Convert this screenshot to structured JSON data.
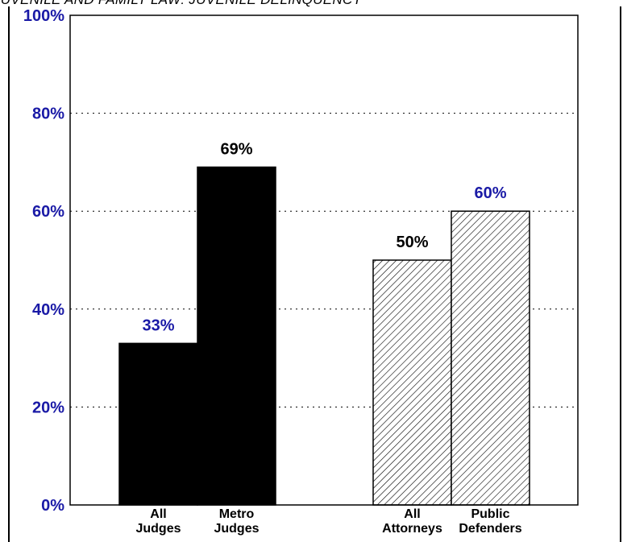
{
  "chart_data": {
    "type": "bar",
    "title": "JUVENILE AND FAMILY LAW: JUVENILE DELINQUENCY",
    "categories": [
      "All Judges",
      "Metro Judges",
      "All Attorneys",
      "Public Defenders"
    ],
    "category_lines": [
      [
        "All",
        "Judges"
      ],
      [
        "Metro",
        "Judges"
      ],
      [
        "All",
        "Attorneys"
      ],
      [
        "Public",
        "Defenders"
      ]
    ],
    "values": [
      33,
      69,
      50,
      60
    ],
    "value_labels": [
      "33%",
      "69%",
      "50%",
      "60%"
    ],
    "bar_styles": [
      "solid-black",
      "solid-black",
      "hatched",
      "hatched"
    ],
    "value_label_colors": [
      "#1a1aa6",
      "#000000",
      "#000000",
      "#1a1aa6"
    ],
    "ylim": [
      0,
      100
    ],
    "yticks": [
      0,
      20,
      40,
      60,
      80,
      100
    ],
    "ytick_labels": [
      "0%",
      "20%",
      "40%",
      "60%",
      "80%",
      "100%"
    ],
    "ytick_color": "#1a1aa6",
    "grid": "dotted-horizontal",
    "xlabel": "",
    "ylabel": ""
  }
}
